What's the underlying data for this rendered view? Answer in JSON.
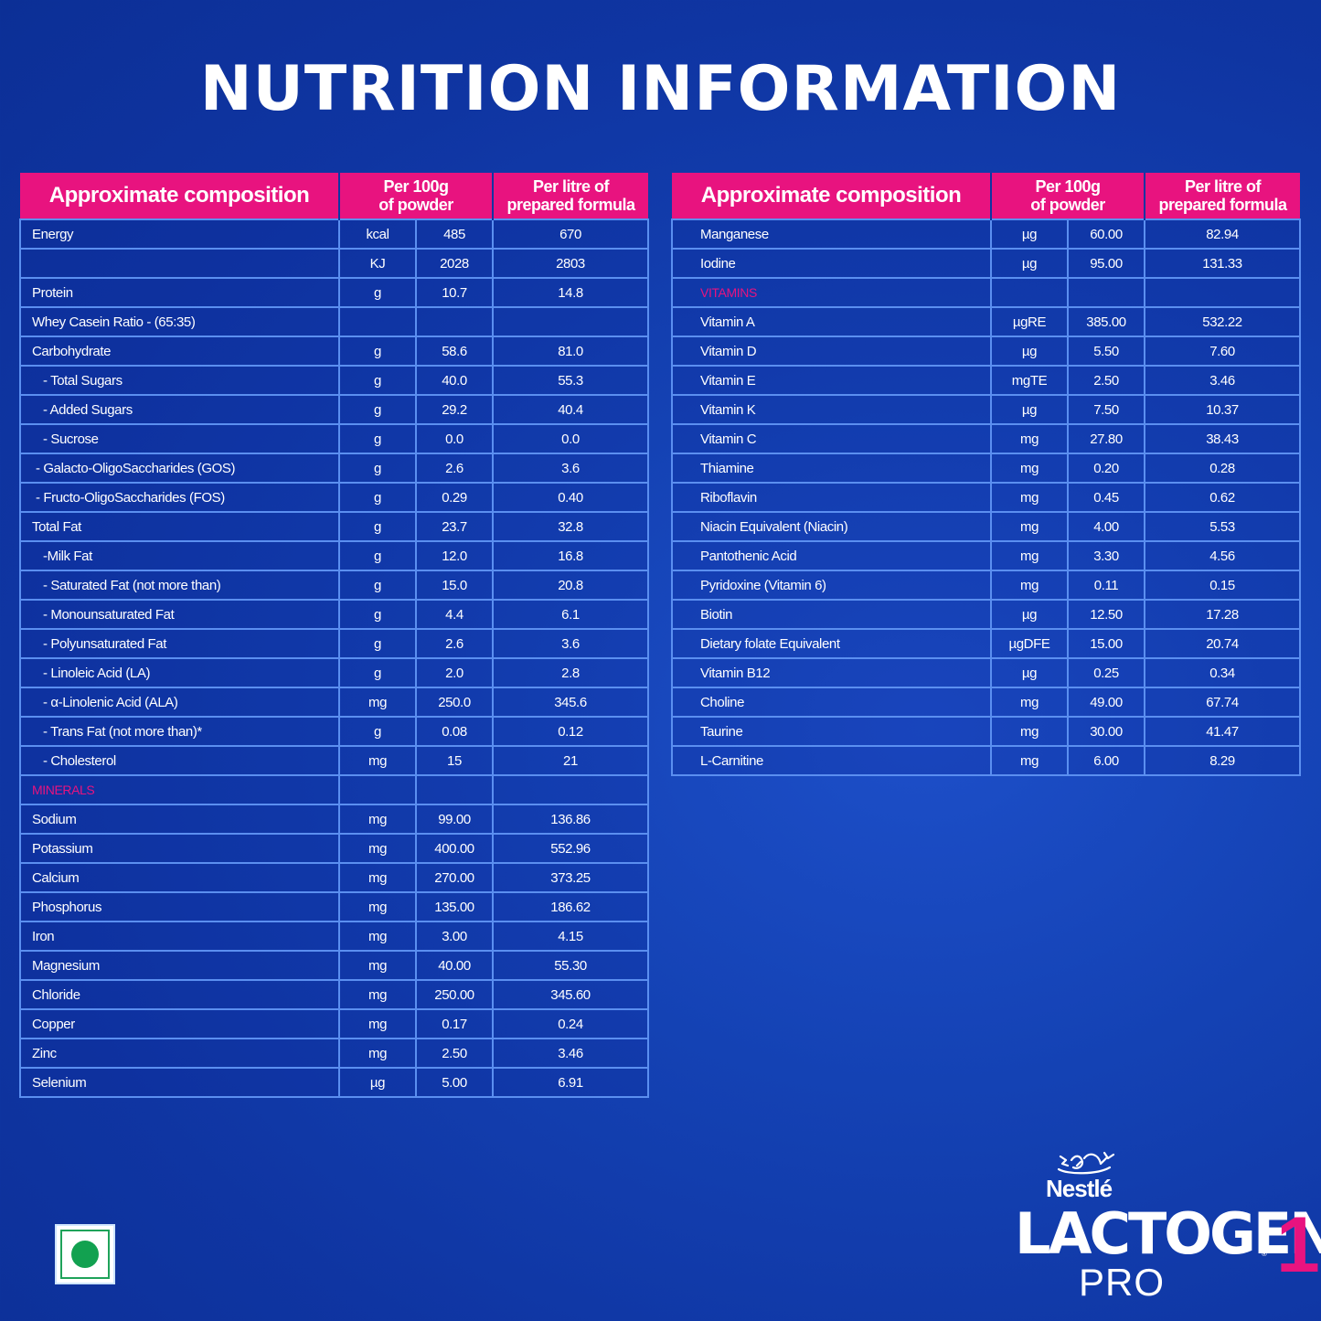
{
  "page": {
    "title": "NUTRITION INFORMATION"
  },
  "headers": {
    "composition": "Approximate composition",
    "per100g_line1": "Per 100g",
    "per100g_line2": "of powder",
    "perlitre_line1": "Per litre of",
    "perlitre_line2": "prepared formula"
  },
  "left_table": {
    "rows": [
      {
        "name": "Energy",
        "unit": "kcal",
        "per100g": "485",
        "perlitre": "670"
      },
      {
        "name": "",
        "unit": "KJ",
        "per100g": "2028",
        "perlitre": "2803"
      },
      {
        "name": "Protein",
        "unit": "g",
        "per100g": "10.7",
        "perlitre": "14.8"
      },
      {
        "name": "Whey Casein Ratio - (65:35)",
        "unit": "",
        "per100g": "",
        "perlitre": ""
      },
      {
        "name": "Carbohydrate",
        "unit": "g",
        "per100g": "58.6",
        "perlitre": "81.0"
      },
      {
        "name": "- Total Sugars",
        "unit": "g",
        "per100g": "40.0",
        "perlitre": "55.3"
      },
      {
        "name": "- Added Sugars",
        "unit": "g",
        "per100g": "29.2",
        "perlitre": "40.4"
      },
      {
        "name": "- Sucrose",
        "unit": "g",
        "per100g": "0.0",
        "perlitre": "0.0"
      },
      {
        "name": "- Galacto-OligoSaccharides (GOS)",
        "unit": "g",
        "per100g": "2.6",
        "perlitre": "3.6"
      },
      {
        "name": "- Fructo-OligoSaccharides (FOS)",
        "unit": "g",
        "per100g": "0.29",
        "perlitre": "0.40"
      },
      {
        "name": "Total Fat",
        "unit": "g",
        "per100g": "23.7",
        "perlitre": "32.8"
      },
      {
        "name": "-Milk Fat",
        "unit": "g",
        "per100g": "12.0",
        "perlitre": "16.8"
      },
      {
        "name": "- Saturated Fat (not more than)",
        "unit": "g",
        "per100g": "15.0",
        "perlitre": "20.8"
      },
      {
        "name": "- Monounsaturated Fat",
        "unit": "g",
        "per100g": "4.4",
        "perlitre": "6.1"
      },
      {
        "name": "- Polyunsaturated Fat",
        "unit": "g",
        "per100g": "2.6",
        "perlitre": "3.6"
      },
      {
        "name": "- Linoleic Acid (LA)",
        "unit": "g",
        "per100g": "2.0",
        "perlitre": "2.8"
      },
      {
        "name": "- α-Linolenic Acid (ALA)",
        "unit": "mg",
        "per100g": "250.0",
        "perlitre": "345.6"
      },
      {
        "name": "- Trans Fat (not more than)*",
        "unit": "g",
        "per100g": "0.08",
        "perlitre": "0.12"
      },
      {
        "name": "- Cholesterol",
        "unit": "mg",
        "per100g": "15",
        "perlitre": "21"
      },
      {
        "name": "MINERALS",
        "unit": "",
        "per100g": "",
        "perlitre": ""
      },
      {
        "name": "Sodium",
        "unit": "mg",
        "per100g": "99.00",
        "perlitre": "136.86"
      },
      {
        "name": "Potassium",
        "unit": "mg",
        "per100g": "400.00",
        "perlitre": "552.96"
      },
      {
        "name": "Calcium",
        "unit": "mg",
        "per100g": "270.00",
        "perlitre": "373.25"
      },
      {
        "name": "Phosphorus",
        "unit": "mg",
        "per100g": "135.00",
        "perlitre": "186.62"
      },
      {
        "name": "Iron",
        "unit": "mg",
        "per100g": "3.00",
        "perlitre": "4.15"
      },
      {
        "name": "Magnesium",
        "unit": "mg",
        "per100g": "40.00",
        "perlitre": "55.30"
      },
      {
        "name": "Chloride",
        "unit": "mg",
        "per100g": "250.00",
        "perlitre": "345.60"
      },
      {
        "name": "Copper",
        "unit": "mg",
        "per100g": "0.17",
        "perlitre": "0.24"
      },
      {
        "name": "Zinc",
        "unit": "mg",
        "per100g": "2.50",
        "perlitre": "3.46"
      },
      {
        "name": "Selenium",
        "unit": "µg",
        "per100g": "5.00",
        "perlitre": "6.91"
      }
    ]
  },
  "right_table": {
    "rows": [
      {
        "name": "Manganese",
        "unit": "µg",
        "per100g": "60.00",
        "perlitre": "82.94"
      },
      {
        "name": "Iodine",
        "unit": "µg",
        "per100g": "95.00",
        "perlitre": "131.33"
      },
      {
        "name": "VITAMINS",
        "unit": "",
        "per100g": "",
        "perlitre": ""
      },
      {
        "name": "Vitamin A",
        "unit": "µgRE",
        "per100g": "385.00",
        "perlitre": "532.22"
      },
      {
        "name": "Vitamin D",
        "unit": "µg",
        "per100g": "5.50",
        "perlitre": "7.60"
      },
      {
        "name": "Vitamin E",
        "unit": "mgTE",
        "per100g": "2.50",
        "perlitre": "3.46"
      },
      {
        "name": "Vitamin K",
        "unit": "µg",
        "per100g": "7.50",
        "perlitre": "10.37"
      },
      {
        "name": "Vitamin C",
        "unit": "mg",
        "per100g": "27.80",
        "perlitre": "38.43"
      },
      {
        "name": "Thiamine",
        "unit": "mg",
        "per100g": "0.20",
        "perlitre": "0.28"
      },
      {
        "name": "Riboflavin",
        "unit": "mg",
        "per100g": "0.45",
        "perlitre": "0.62"
      },
      {
        "name": "Niacin Equivalent  (Niacin)",
        "unit": "mg",
        "per100g": "4.00",
        "perlitre": "5.53"
      },
      {
        "name": "Pantothenic Acid",
        "unit": "mg",
        "per100g": "3.30",
        "perlitre": "4.56"
      },
      {
        "name": "Pyridoxine (Vitamin 6)",
        "unit": "mg",
        "per100g": "0.11",
        "perlitre": "0.15"
      },
      {
        "name": "Biotin",
        "unit": "µg",
        "per100g": "12.50",
        "perlitre": "17.28"
      },
      {
        "name": "Dietary folate Equivalent",
        "unit": "µgDFE",
        "per100g": "15.00",
        "perlitre": "20.74"
      },
      {
        "name": "Vitamin B12",
        "unit": "µg",
        "per100g": "0.25",
        "perlitre": "0.34"
      },
      {
        "name": "Choline",
        "unit": "mg",
        "per100g": "49.00",
        "perlitre": "67.74"
      },
      {
        "name": "Taurine",
        "unit": "mg",
        "per100g": "30.00",
        "perlitre": "41.47"
      },
      {
        "name": "L-Carnitine",
        "unit": "mg",
        "per100g": "6.00",
        "perlitre": "8.29"
      }
    ]
  },
  "brand": {
    "company": "Nestlé",
    "product": "LACTOGEN",
    "registered": "®",
    "variant": "PRO",
    "stage": "1",
    "logo_icon": "nest-birds-icon",
    "veg_mark_icon": "vegetarian-mark-icon"
  },
  "colors": {
    "background": "#1442b4",
    "header_pink": "#e8137f",
    "grid_line": "#5b8ff0",
    "section_label": "#e8137f",
    "veg_green": "#12a150"
  }
}
